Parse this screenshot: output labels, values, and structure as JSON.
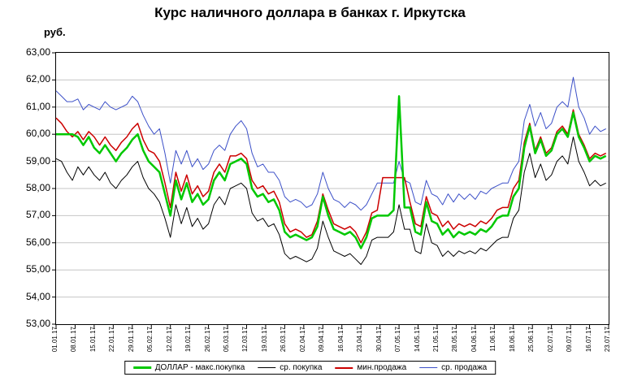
{
  "chart_data": {
    "type": "line",
    "title": "Курс наличного доллара в банках г. Иркутска",
    "ylabel": "руб.",
    "xlabel": "",
    "ylim": [
      53,
      63
    ],
    "y_tick_step": 1,
    "grid": true,
    "grid_color": "#c6c6c6",
    "axis_color": "#000000",
    "legend_position": "bottom",
    "x_day_span": 203,
    "sample_step_days": 2,
    "y_tick_labels": [
      "63,00",
      "62,00",
      "61,00",
      "60,00",
      "59,00",
      "58,00",
      "57,00",
      "56,00",
      "55,00",
      "54,00",
      "53,00"
    ],
    "x_tick_labels": [
      "01.01.17",
      "08.01.17",
      "15.01.17",
      "22.01.17",
      "29.01.17",
      "05.02.17",
      "12.02.17",
      "19.02.17",
      "26.02.17",
      "05.03.17",
      "12.03.17",
      "19.03.17",
      "26.03.17",
      "02.04.17",
      "09.04.17",
      "16.04.17",
      "23.04.17",
      "30.04.17",
      "07.05.17",
      "14.05.17",
      "21.05.17",
      "28.05.17",
      "04.06.17",
      "11.06.17",
      "18.06.17",
      "25.06.17",
      "02.07.17",
      "09.07.17",
      "16.07.17",
      "23.07.17"
    ],
    "series": [
      {
        "key": "dollar-max-buy",
        "name": "ДОЛЛАР - макс.покупка",
        "color": "#00c800",
        "width": 2.5,
        "values": [
          60.0,
          60.0,
          60.0,
          60.0,
          59.9,
          59.6,
          59.9,
          59.5,
          59.3,
          59.6,
          59.3,
          59.0,
          59.3,
          59.5,
          59.8,
          60.0,
          59.4,
          59.0,
          58.8,
          58.6,
          57.8,
          57.0,
          58.3,
          57.6,
          58.2,
          57.5,
          57.8,
          57.4,
          57.6,
          58.3,
          58.6,
          58.3,
          58.9,
          59.0,
          59.1,
          58.9,
          58.0,
          57.7,
          57.8,
          57.5,
          57.6,
          57.2,
          56.4,
          56.2,
          56.3,
          56.2,
          56.1,
          56.2,
          56.6,
          57.7,
          57.0,
          56.5,
          56.4,
          56.3,
          56.4,
          56.2,
          55.8,
          56.2,
          56.9,
          57.0,
          57.0,
          57.0,
          57.2,
          61.4,
          57.3,
          57.3,
          56.4,
          56.3,
          57.5,
          56.8,
          56.7,
          56.3,
          56.5,
          56.2,
          56.4,
          56.3,
          56.4,
          56.3,
          56.5,
          56.4,
          56.6,
          56.9,
          57.0,
          57.0,
          57.7,
          58.0,
          59.5,
          60.3,
          59.3,
          59.8,
          59.2,
          59.4,
          60.0,
          60.2,
          59.9,
          60.8,
          59.9,
          59.5,
          59.0,
          59.2,
          59.1,
          59.2
        ]
      },
      {
        "key": "avg-buy",
        "name": "ср. покупка",
        "color": "#000000",
        "width": 1,
        "values": [
          59.1,
          59.0,
          58.6,
          58.3,
          58.8,
          58.5,
          58.8,
          58.5,
          58.3,
          58.6,
          58.2,
          58.0,
          58.3,
          58.5,
          58.8,
          59.0,
          58.4,
          58.0,
          57.8,
          57.5,
          56.9,
          56.2,
          57.4,
          56.7,
          57.3,
          56.6,
          56.9,
          56.5,
          56.7,
          57.4,
          57.7,
          57.4,
          58.0,
          58.1,
          58.2,
          58.0,
          57.1,
          56.8,
          56.9,
          56.6,
          56.7,
          56.3,
          55.6,
          55.4,
          55.5,
          55.4,
          55.3,
          55.4,
          55.8,
          56.8,
          56.2,
          55.7,
          55.6,
          55.5,
          55.6,
          55.4,
          55.2,
          55.5,
          56.1,
          56.2,
          56.2,
          56.2,
          56.4,
          57.4,
          56.5,
          56.5,
          55.7,
          55.6,
          56.7,
          56.0,
          55.9,
          55.5,
          55.7,
          55.5,
          55.7,
          55.6,
          55.7,
          55.6,
          55.8,
          55.7,
          55.9,
          56.1,
          56.2,
          56.2,
          56.9,
          57.2,
          58.6,
          59.3,
          58.4,
          58.9,
          58.3,
          58.5,
          59.0,
          59.2,
          58.9,
          59.9,
          59.0,
          58.6,
          58.1,
          58.3,
          58.1,
          58.2
        ]
      },
      {
        "key": "min-sell",
        "name": "мин.продажа",
        "color": "#cc0000",
        "width": 1.5,
        "values": [
          60.6,
          60.4,
          60.1,
          59.9,
          60.1,
          59.8,
          60.1,
          59.9,
          59.6,
          59.9,
          59.6,
          59.4,
          59.7,
          59.9,
          60.2,
          60.4,
          59.8,
          59.4,
          59.3,
          59.0,
          58.2,
          57.3,
          58.6,
          57.9,
          58.5,
          57.8,
          58.1,
          57.7,
          57.9,
          58.6,
          58.9,
          58.6,
          59.2,
          59.2,
          59.3,
          59.1,
          58.3,
          58.0,
          58.1,
          57.8,
          57.9,
          57.5,
          56.7,
          56.4,
          56.5,
          56.4,
          56.2,
          56.3,
          56.8,
          57.8,
          57.2,
          56.7,
          56.6,
          56.5,
          56.6,
          56.4,
          56.0,
          56.4,
          57.1,
          57.2,
          58.4,
          58.4,
          58.4,
          58.4,
          58.4,
          57.5,
          56.7,
          56.6,
          57.7,
          57.1,
          57.0,
          56.6,
          56.8,
          56.5,
          56.7,
          56.6,
          56.7,
          56.6,
          56.8,
          56.7,
          56.9,
          57.2,
          57.3,
          57.3,
          58.0,
          58.3,
          59.7,
          60.4,
          59.4,
          59.9,
          59.3,
          59.5,
          60.1,
          60.3,
          60.0,
          60.9,
          60.0,
          59.6,
          59.1,
          59.3,
          59.2,
          59.3
        ]
      },
      {
        "key": "avg-sell",
        "name": "ср. продажа",
        "color": "#3c50c8",
        "width": 1,
        "values": [
          61.6,
          61.4,
          61.2,
          61.2,
          61.3,
          60.9,
          61.1,
          61.0,
          60.9,
          61.2,
          61.0,
          60.9,
          61.0,
          61.1,
          61.4,
          61.2,
          60.7,
          60.3,
          60.0,
          60.2,
          59.3,
          58.2,
          59.4,
          58.9,
          59.4,
          58.8,
          59.1,
          58.7,
          58.9,
          59.4,
          59.6,
          59.4,
          60.0,
          60.3,
          60.5,
          60.2,
          59.3,
          58.8,
          58.9,
          58.6,
          58.6,
          58.3,
          57.7,
          57.5,
          57.6,
          57.5,
          57.3,
          57.4,
          57.8,
          58.6,
          58.0,
          57.6,
          57.5,
          57.3,
          57.5,
          57.4,
          57.2,
          57.4,
          57.8,
          58.2,
          58.2,
          58.2,
          58.2,
          59.0,
          58.3,
          58.2,
          57.5,
          57.4,
          58.3,
          57.8,
          57.7,
          57.4,
          57.8,
          57.5,
          57.8,
          57.6,
          57.8,
          57.6,
          57.9,
          57.8,
          58.0,
          58.1,
          58.2,
          58.2,
          58.7,
          59.0,
          60.5,
          61.1,
          60.3,
          60.8,
          60.2,
          60.4,
          61.0,
          61.2,
          61.0,
          62.1,
          61.0,
          60.6,
          60.0,
          60.3,
          60.1,
          60.2
        ]
      }
    ]
  }
}
